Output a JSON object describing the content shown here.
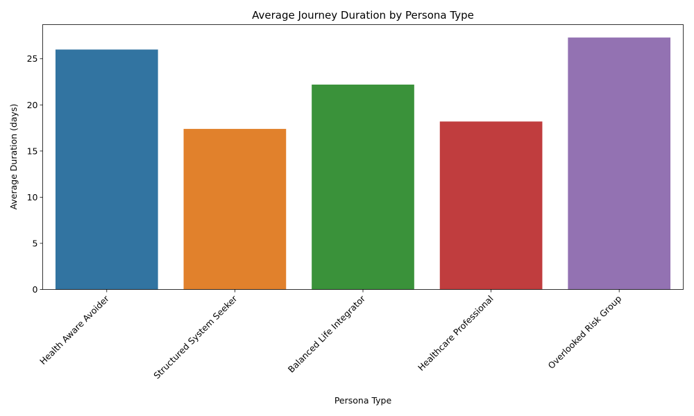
{
  "chart_data": {
    "type": "bar",
    "title": "Average Journey Duration by Persona Type",
    "xlabel": "Persona Type",
    "ylabel": "Average Duration (days)",
    "categories": [
      "Health Aware Avoider",
      "Structured System Seeker",
      "Balanced Life Integrator",
      "Healthcare Professional",
      "Overlooked Risk Group"
    ],
    "values": [
      26.0,
      17.4,
      22.2,
      18.2,
      27.3
    ],
    "colors": [
      "#3274a1",
      "#e1812c",
      "#3a923a",
      "#c03d3e",
      "#9372b2"
    ],
    "ylim": [
      0,
      28.7
    ],
    "yticks": [
      0,
      5,
      10,
      15,
      20,
      25
    ],
    "grid": false,
    "legend": "none"
  }
}
